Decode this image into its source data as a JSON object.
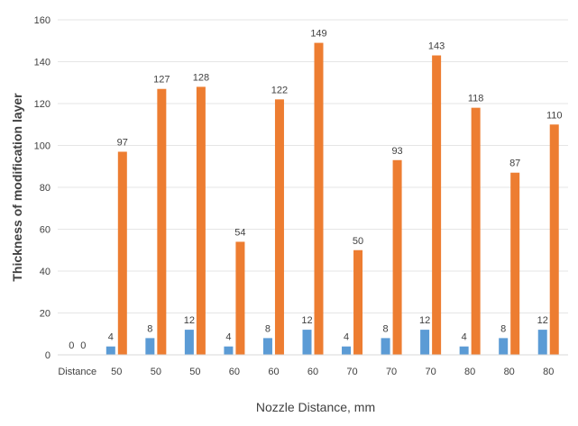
{
  "chart_data": {
    "type": "bar",
    "xlabel": "Nozzle Distance, mm",
    "ylabel": "Thickness of modification layer",
    "ylim": [
      0,
      160
    ],
    "yticks": [
      0,
      20,
      40,
      60,
      80,
      100,
      120,
      140,
      160
    ],
    "grid": true,
    "legend": "none",
    "categories": [
      "Distance",
      "50",
      "50",
      "50",
      "60",
      "60",
      "60",
      "70",
      "70",
      "70",
      "80",
      "80",
      "80"
    ],
    "series": [
      {
        "color": "#5b9bd5",
        "values": [
          0,
          4,
          8,
          12,
          4,
          8,
          12,
          4,
          8,
          12,
          4,
          8,
          12
        ]
      },
      {
        "color": "#ed7d31",
        "values": [
          0,
          97,
          127,
          128,
          54,
          122,
          149,
          50,
          93,
          143,
          118,
          87,
          110
        ]
      }
    ]
  }
}
